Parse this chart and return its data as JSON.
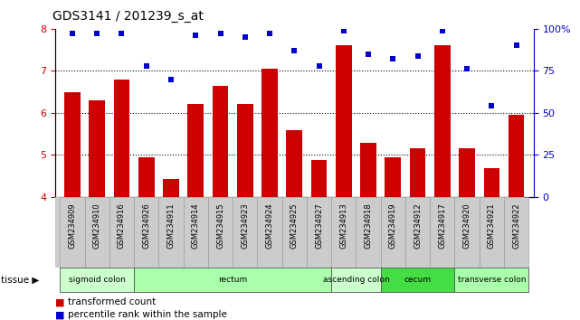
{
  "title": "GDS3141 / 201239_s_at",
  "samples": [
    "GSM234909",
    "GSM234910",
    "GSM234916",
    "GSM234926",
    "GSM234911",
    "GSM234914",
    "GSM234915",
    "GSM234923",
    "GSM234924",
    "GSM234925",
    "GSM234927",
    "GSM234913",
    "GSM234918",
    "GSM234919",
    "GSM234912",
    "GSM234917",
    "GSM234920",
    "GSM234921",
    "GSM234922"
  ],
  "bar_values": [
    6.5,
    6.3,
    6.8,
    4.95,
    4.42,
    6.2,
    6.65,
    6.2,
    7.05,
    5.58,
    4.88,
    7.62,
    5.28,
    4.95,
    5.15,
    7.62,
    5.15,
    4.68,
    5.95
  ],
  "dot_values": [
    97,
    97,
    97,
    78,
    70,
    96,
    97,
    95,
    97,
    87,
    78,
    99,
    85,
    82,
    84,
    99,
    76,
    54,
    90
  ],
  "ylim_left": [
    4,
    8
  ],
  "ylim_right": [
    0,
    100
  ],
  "yticks_left": [
    4,
    5,
    6,
    7,
    8
  ],
  "yticks_right": [
    0,
    25,
    50,
    75,
    100
  ],
  "ytick_right_labels": [
    "0",
    "25",
    "50",
    "75",
    "100%"
  ],
  "bar_color": "#cc0000",
  "dot_color": "#0000cc",
  "tissue_groups": [
    {
      "label": "sigmoid colon",
      "start": 0,
      "end": 3,
      "color": "#ccffcc"
    },
    {
      "label": "rectum",
      "start": 3,
      "end": 11,
      "color": "#aaffaa"
    },
    {
      "label": "ascending colon",
      "start": 11,
      "end": 13,
      "color": "#ccffcc"
    },
    {
      "label": "cecum",
      "start": 13,
      "end": 16,
      "color": "#44dd44"
    },
    {
      "label": "transverse colon",
      "start": 16,
      "end": 19,
      "color": "#aaffaa"
    }
  ],
  "legend_bar_label": "transformed count",
  "legend_dot_label": "percentile rank within the sample",
  "grid_values": [
    5,
    6,
    7
  ],
  "xticklabel_bg": "#cccccc",
  "tissue_label": "tissue"
}
